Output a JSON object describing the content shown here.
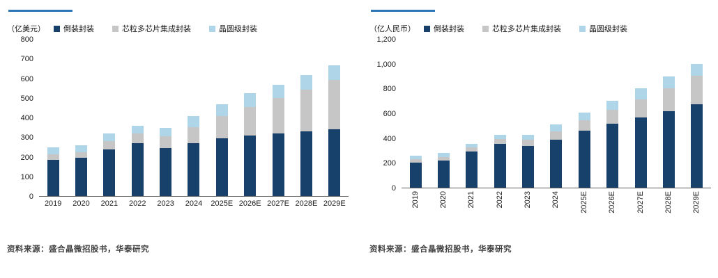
{
  "source_note": "资料来源：盛合晶微招股书，华泰研究",
  "colors": {
    "accent_rule": "#2E75B6",
    "axis_line": "#595959"
  },
  "chart_data": [
    {
      "type": "bar",
      "stacked": true,
      "unit_label": "（亿美元）",
      "legend_position": "top",
      "grid": false,
      "categories": [
        "2019",
        "2020",
        "2021",
        "2022",
        "2023",
        "2024",
        "2025E",
        "2026E",
        "2027E",
        "2028E",
        "2029E"
      ],
      "series": [
        {
          "name": "倒装封装",
          "color": "#17406B",
          "values": [
            185,
            195,
            240,
            270,
            245,
            270,
            295,
            310,
            320,
            330,
            340
          ]
        },
        {
          "name": "芯粒多芯片集成封装",
          "color": "#C6C6C6",
          "values": [
            30,
            30,
            40,
            50,
            62,
            83,
            115,
            145,
            180,
            215,
            255
          ]
        },
        {
          "name": "晶圆级封装",
          "color": "#AFD6E8",
          "values": [
            35,
            35,
            40,
            40,
            40,
            55,
            60,
            70,
            70,
            75,
            75
          ]
        }
      ],
      "ylim": [
        0,
        800
      ],
      "yticks": [
        "0",
        "100",
        "200",
        "300",
        "400",
        "500",
        "600",
        "700",
        "800"
      ],
      "x_label_rotated": false
    },
    {
      "type": "bar",
      "stacked": true,
      "unit_label": "（亿人民币）",
      "legend_position": "top",
      "grid": false,
      "categories": [
        "2019",
        "2020",
        "2021",
        "2022",
        "2023",
        "2024",
        "2025E",
        "2026E",
        "2027E",
        "2028E",
        "2029E"
      ],
      "series": [
        {
          "name": "倒装封装",
          "color": "#17406B",
          "values": [
            205,
            220,
            295,
            355,
            340,
            390,
            460,
            520,
            570,
            620,
            675
          ]
        },
        {
          "name": "芯粒多芯片集成封装",
          "color": "#C6C6C6",
          "values": [
            25,
            28,
            30,
            38,
            50,
            67,
            88,
            112,
            148,
            185,
            230
          ]
        },
        {
          "name": "晶圆级封装",
          "color": "#AFD6E8",
          "values": [
            30,
            35,
            30,
            35,
            38,
            55,
            62,
            75,
            87,
            95,
            100
          ]
        }
      ],
      "ylim": [
        0,
        1200
      ],
      "yticks": [
        "0",
        "200",
        "400",
        "600",
        "800",
        "1,000",
        "1,200"
      ],
      "x_label_rotated": true
    }
  ]
}
